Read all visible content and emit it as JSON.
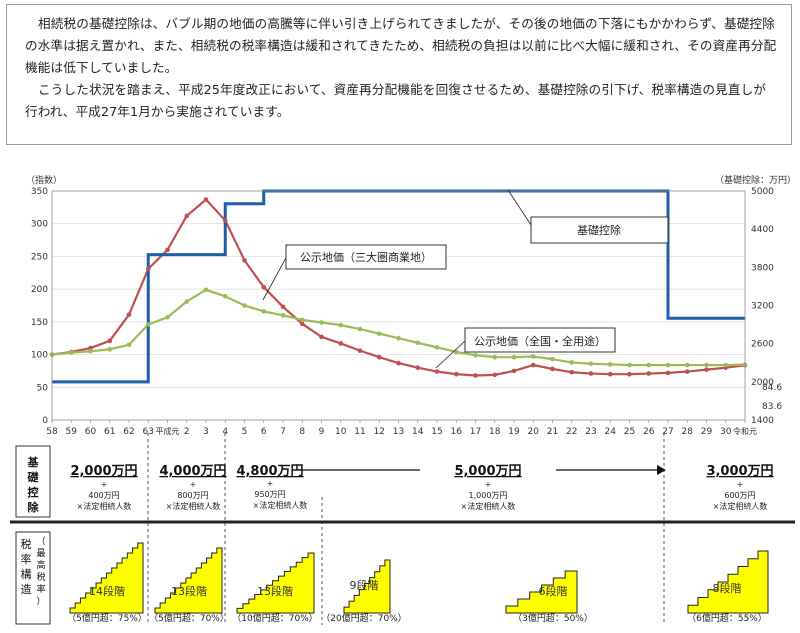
{
  "intro": {
    "paragraph1": "相続税の基礎控除は、バブル期の地価の高騰等に伴い引き上げられてきましたが、その後の地価の下落にもかかわらず、基礎控除の水準は据え置かれ、また、相続税の税率構造は緩和されてきたため、相続税の負担は以前に比べ大幅に緩和され、その資産再分配機能は低下していました。",
    "paragraph2": "こうした状況を踏まえ、平成25年度改正において、資産再分配機能を回復させるため、基礎控除の引下げ、税率構造の見直しが行われ、平成27年1月から実施されています。"
  },
  "chart_data": {
    "type": "line",
    "x": [
      "58",
      "59",
      "60",
      "61",
      "62",
      "63",
      "平成元",
      "2",
      "3",
      "4",
      "5",
      "6",
      "7",
      "8",
      "9",
      "10",
      "11",
      "12",
      "13",
      "14",
      "15",
      "16",
      "17",
      "18",
      "19",
      "20",
      "21",
      "22",
      "23",
      "24",
      "25",
      "26",
      "27",
      "28",
      "29",
      "30",
      "令和元"
    ],
    "left_axis": {
      "label": "（指数）",
      "ticks": [
        0,
        50,
        100,
        150,
        200,
        250,
        300,
        350
      ],
      "ylim": [
        0,
        350
      ]
    },
    "right_axis": {
      "label": "（基礎控除：万円）",
      "ticks": [
        1400,
        2000,
        2600,
        3200,
        3800,
        4400,
        5000
      ],
      "ylim": [
        1400,
        5000
      ]
    },
    "series": [
      {
        "name": "公示地価（三大圏商業地）",
        "color": "#c0504d",
        "axis": "left",
        "values": [
          100,
          104,
          110,
          121,
          161,
          231,
          260,
          312,
          337,
          305,
          244,
          203,
          173,
          147,
          127,
          117,
          106,
          96,
          87,
          80,
          74,
          70,
          68,
          69,
          75,
          84,
          78,
          73,
          71,
          70,
          70,
          71,
          72,
          74,
          77,
          80,
          83.6
        ]
      },
      {
        "name": "公示地価（全国・全用途）",
        "color": "#9bbb59",
        "axis": "left",
        "values": [
          100,
          103,
          105,
          108,
          115,
          146,
          157,
          181,
          199,
          189,
          175,
          166,
          160,
          153,
          149,
          145,
          139,
          132,
          125,
          118,
          111,
          104,
          99,
          96,
          96,
          97,
          93,
          88,
          86,
          85,
          84,
          84,
          84,
          84,
          84,
          84,
          84.6
        ]
      },
      {
        "name": "基礎控除",
        "color": "#1f5fa8",
        "axis": "right",
        "step": true,
        "values": [
          2000,
          2000,
          2000,
          2000,
          2000,
          4000,
          4000,
          4000,
          4000,
          4800,
          4800,
          5000,
          5000,
          5000,
          5000,
          5000,
          5000,
          5000,
          5000,
          5000,
          5000,
          5000,
          5000,
          5000,
          5000,
          5000,
          5000,
          5000,
          5000,
          5000,
          5000,
          5000,
          3000,
          3000,
          3000,
          3000,
          3000
        ]
      }
    ],
    "end_labels": [
      "84.6",
      "83.6"
    ]
  },
  "deduction_row": {
    "label": [
      "基",
      "礎",
      "控",
      "除"
    ],
    "items": [
      {
        "amount": "2,000万円",
        "plus": "+",
        "detail1": "400万円",
        "detail2": "×法定相続人数"
      },
      {
        "amount": "4,000万円",
        "plus": "+",
        "detail1": "800万円",
        "detail2": "×法定相続人数"
      },
      {
        "amount": "4,800万円",
        "plus": "+",
        "detail1": "950万円",
        "detail2": "×法定相続人数"
      },
      {
        "amount": "5,000万円",
        "plus": "+",
        "detail1": "1,000万円",
        "detail2": "×法定相続人数"
      },
      {
        "amount": "3,000万円",
        "plus": "+",
        "detail1": "600万円",
        "detail2": "×法定相続人数"
      }
    ]
  },
  "rate_row": {
    "label_col1": [
      "税",
      "率",
      "構",
      "造"
    ],
    "label_col2": [
      "（",
      "最",
      "高",
      "税",
      "率",
      "）"
    ],
    "items": [
      {
        "steps": "14段階",
        "rate": "（5億円超：75%）"
      },
      {
        "steps": "13段階",
        "rate": "（5億円超：70%）"
      },
      {
        "steps": "13段階",
        "rate": "（10億円超：70%）"
      },
      {
        "steps": "9段階",
        "rate": "（20億円超：70%）"
      },
      {
        "steps": "6段階",
        "rate": "（3億円超：50%）"
      },
      {
        "steps": "8段階",
        "rate": "（6億円超：55%）"
      }
    ]
  },
  "colors": {
    "stair_fill": "#ffff00",
    "deduction_line": "#1f5fa8",
    "commercial_line": "#c0504d",
    "national_line": "#9bbb59"
  }
}
